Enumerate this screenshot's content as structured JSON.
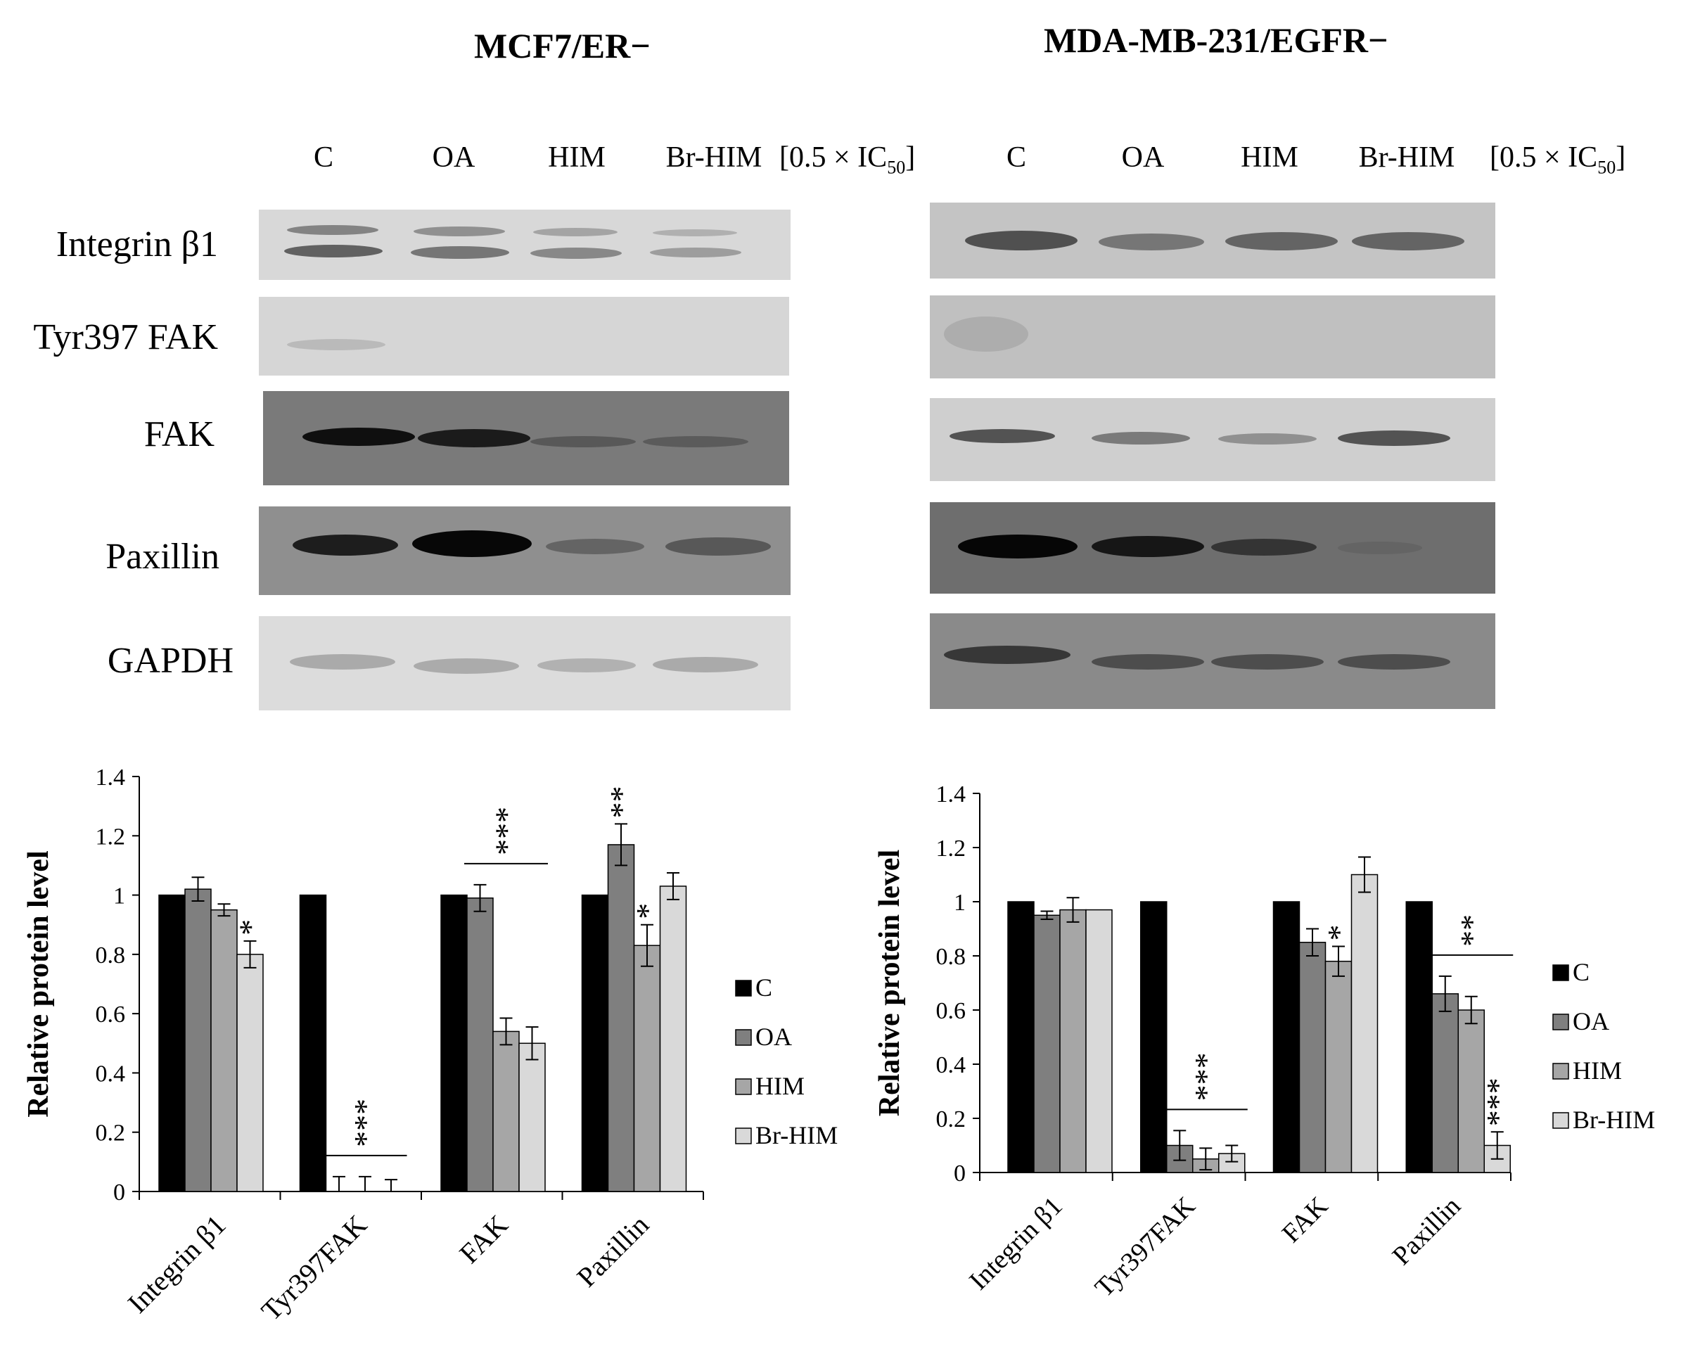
{
  "panels": [
    {
      "title": "MCF7/ER−",
      "lanes": [
        "C",
        "OA",
        "HIM",
        "Br-HIM"
      ],
      "dose_prefix": "[0.5 × IC",
      "dose_sub": "50",
      "dose_suffix": "]",
      "blot_labels": [
        "Integrin β1",
        "Tyr397 FAK",
        "FAK",
        "Paxillin",
        "GAPDH"
      ]
    },
    {
      "title": "MDA-MB-231/EGFR−",
      "lanes": [
        "C",
        "OA",
        "HIM",
        "Br-HIM"
      ],
      "dose_prefix": "[0.5 × IC",
      "dose_sub": "50",
      "dose_suffix": "]"
    }
  ],
  "chart_data": [
    {
      "type": "bar",
      "categories": [
        "Integrin β1",
        "Tyr397FAK",
        "FAK",
        "Paxillin"
      ],
      "ylabel": "Relative protein level",
      "ylim": [
        0,
        1.4
      ],
      "yticks": [
        "0",
        "0.2",
        "0.4",
        "0.6",
        "0.8",
        "1",
        "1.2",
        "1.4"
      ],
      "legend_position": "right",
      "series": [
        {
          "name": "C",
          "color": "#000000",
          "values": [
            1.0,
            1.0,
            1.0,
            1.0
          ],
          "errors": [
            0,
            0,
            0,
            0
          ]
        },
        {
          "name": "OA",
          "color": "#7f7f7f",
          "values": [
            1.02,
            0.0,
            0.99,
            1.17
          ],
          "errors": [
            0.04,
            0.05,
            0.045,
            0.07
          ]
        },
        {
          "name": "HIM",
          "color": "#a6a6a6",
          "values": [
            0.95,
            0.0,
            0.54,
            0.83
          ],
          "errors": [
            0.02,
            0.05,
            0.045,
            0.07
          ]
        },
        {
          "name": "Br-HIM",
          "color": "#d9d9d9",
          "values": [
            0.8,
            0.0,
            0.5,
            1.03
          ],
          "errors": [
            0.045,
            0.04,
            0.055,
            0.045
          ]
        }
      ],
      "annotations": [
        {
          "category": 0,
          "series": 3,
          "text": "*"
        },
        {
          "category": 1,
          "text": "***",
          "bracket": true
        },
        {
          "category": 2,
          "text": "***",
          "bracket": true
        },
        {
          "category": 3,
          "series": 1,
          "text": "**"
        },
        {
          "category": 3,
          "series": 2,
          "text": "*"
        }
      ]
    },
    {
      "type": "bar",
      "categories": [
        "Integrin β1",
        "Tyr397FAK",
        "FAK",
        "Paxillin"
      ],
      "ylabel": "Relative protein level",
      "ylim": [
        0,
        1.4
      ],
      "yticks": [
        "0",
        "0.2",
        "0.4",
        "0.6",
        "0.8",
        "1",
        "1.2",
        "1.4"
      ],
      "legend_position": "right",
      "series": [
        {
          "name": "C",
          "color": "#000000",
          "values": [
            1.0,
            1.0,
            1.0,
            1.0
          ],
          "errors": [
            0,
            0,
            0,
            0
          ]
        },
        {
          "name": "OA",
          "color": "#7f7f7f",
          "values": [
            0.95,
            0.1,
            0.85,
            0.66
          ],
          "errors": [
            0.015,
            0.055,
            0.05,
            0.065
          ]
        },
        {
          "name": "HIM",
          "color": "#a6a6a6",
          "values": [
            0.97,
            0.05,
            0.78,
            0.6
          ],
          "errors": [
            0.045,
            0.04,
            0.055,
            0.05
          ]
        },
        {
          "name": "Br-HIM",
          "color": "#d9d9d9",
          "values": [
            0.97,
            0.07,
            1.1,
            0.1
          ],
          "errors": [
            0,
            0.03,
            0.065,
            0.05
          ]
        }
      ],
      "annotations": [
        {
          "category": 1,
          "text": "***",
          "bracket": true
        },
        {
          "category": 2,
          "series": 2,
          "text": "*"
        },
        {
          "category": 3,
          "text": "**",
          "bracket": true
        },
        {
          "category": 3,
          "series": 3,
          "text": "***"
        }
      ]
    }
  ]
}
